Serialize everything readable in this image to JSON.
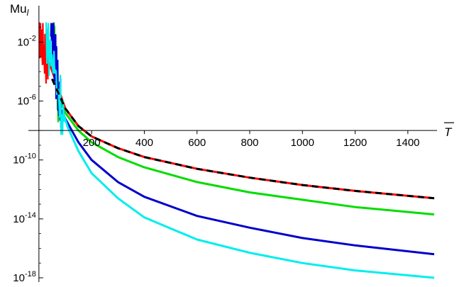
{
  "chart_data": {
    "type": "line",
    "title": "",
    "ylabel": "Mu",
    "ylabel_sub": "l",
    "xlabel": "T",
    "xlabel_overbar": true,
    "x_axis_range": [
      -40,
      1500
    ],
    "y_axis_range_log10": [
      -18,
      -0.1
    ],
    "y_scale": "log",
    "x_axis_crosses_at_y": 1e-08,
    "grid": false,
    "x_ticks": [
      {
        "value": 200,
        "label": "200"
      },
      {
        "value": 400,
        "label": "400"
      },
      {
        "value": 600,
        "label": "600"
      },
      {
        "value": 800,
        "label": "800"
      },
      {
        "value": 1000,
        "label": "1000"
      },
      {
        "value": 1200,
        "label": "1200"
      },
      {
        "value": 1400,
        "label": "1400"
      }
    ],
    "y_ticks": [
      {
        "exp": -2,
        "label_base": "10",
        "label_exp": "-2"
      },
      {
        "exp": -6,
        "label_base": "10",
        "label_exp": "-6"
      },
      {
        "exp": -10,
        "label_base": "10",
        "label_exp": "-10"
      },
      {
        "exp": -14,
        "label_base": "10",
        "label_exp": "-14"
      },
      {
        "exp": -18,
        "label_base": "10",
        "label_exp": "-18"
      }
    ],
    "series": [
      {
        "color": "#ff0000",
        "dashed": false,
        "x_start": 0,
        "spike_x": [
          0,
          35
        ],
        "x": [
          35,
          100,
          150,
          200,
          300,
          400,
          600,
          800,
          1000,
          1200,
          1500
        ],
        "log10_y": [
          -3.2,
          -6.5,
          -7.7,
          -8.4,
          -9.2,
          -9.8,
          -10.6,
          -11.2,
          -11.7,
          -12.1,
          -12.6
        ]
      },
      {
        "color": "#00dd00",
        "dashed": false,
        "spike_x": [
          55,
          75
        ],
        "x": [
          75,
          100,
          150,
          200,
          300,
          400,
          600,
          800,
          1000,
          1200,
          1500
        ],
        "log10_y": [
          -5.8,
          -6.8,
          -8.0,
          -8.8,
          -9.8,
          -10.5,
          -11.5,
          -12.2,
          -12.7,
          -13.2,
          -13.7
        ]
      },
      {
        "color": "#0000cc",
        "dashed": false,
        "spike_x": [
          45,
          85
        ],
        "x": [
          85,
          100,
          150,
          200,
          300,
          400,
          600,
          800,
          1000,
          1200,
          1500
        ],
        "log10_y": [
          -6.6,
          -7.2,
          -8.8,
          -10.0,
          -11.5,
          -12.5,
          -13.8,
          -14.6,
          -15.3,
          -15.8,
          -16.4
        ]
      },
      {
        "color": "#00eeee",
        "dashed": false,
        "spike_x": [
          25,
          95
        ],
        "x": [
          95,
          110,
          150,
          200,
          300,
          400,
          600,
          800,
          1000,
          1200,
          1500
        ],
        "log10_y": [
          -7.0,
          -7.8,
          -9.4,
          -10.9,
          -12.6,
          -13.9,
          -15.4,
          -16.3,
          -17.0,
          -17.5,
          -18.0
        ]
      },
      {
        "color": "#000000",
        "dashed": true,
        "spike_x": null,
        "x": [
          50,
          100,
          150,
          200,
          300,
          400,
          600,
          800,
          1000,
          1200,
          1500
        ],
        "log10_y": [
          -4.5,
          -6.5,
          -7.7,
          -8.4,
          -9.2,
          -9.8,
          -10.6,
          -11.2,
          -11.7,
          -12.1,
          -12.6
        ]
      }
    ]
  }
}
